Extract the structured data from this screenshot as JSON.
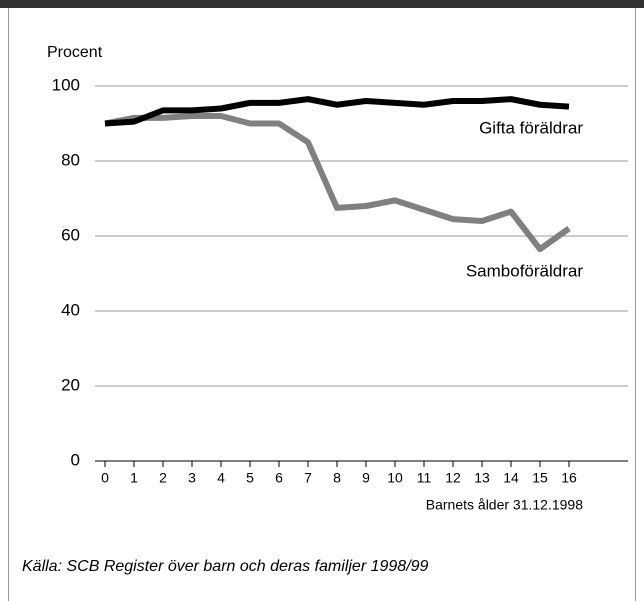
{
  "chart_data": {
    "type": "line",
    "ylabel": "Procent",
    "xlabel": "Barnets ålder 31.12.1998",
    "x": [
      0,
      1,
      2,
      3,
      4,
      5,
      6,
      7,
      8,
      9,
      10,
      11,
      12,
      13,
      14,
      15,
      16
    ],
    "series": [
      {
        "name": "Gifta föräldrar",
        "color": "#000000",
        "values": [
          90,
          90.5,
          93.5,
          93.5,
          94,
          95.5,
          95.5,
          96.5,
          95,
          96,
          95.5,
          95,
          96,
          96,
          96.5,
          95,
          94.5
        ]
      },
      {
        "name": "Samboföräldrar",
        "color": "#808080",
        "values": [
          90,
          91.5,
          91.5,
          92,
          92,
          90,
          90,
          85,
          67.5,
          68,
          69.5,
          67,
          64.5,
          64,
          66.5,
          56.5,
          62
        ]
      }
    ],
    "xlim": [
      0,
      16
    ],
    "xticks": [
      0,
      1,
      2,
      3,
      4,
      5,
      6,
      7,
      8,
      9,
      10,
      11,
      12,
      13,
      14,
      15,
      16
    ],
    "ylim": [
      0,
      100
    ],
    "yticks": [
      0,
      20,
      40,
      60,
      80,
      100
    ],
    "grid": true,
    "source": "Källa: SCB Register över barn och deras familjer 1998/99"
  }
}
